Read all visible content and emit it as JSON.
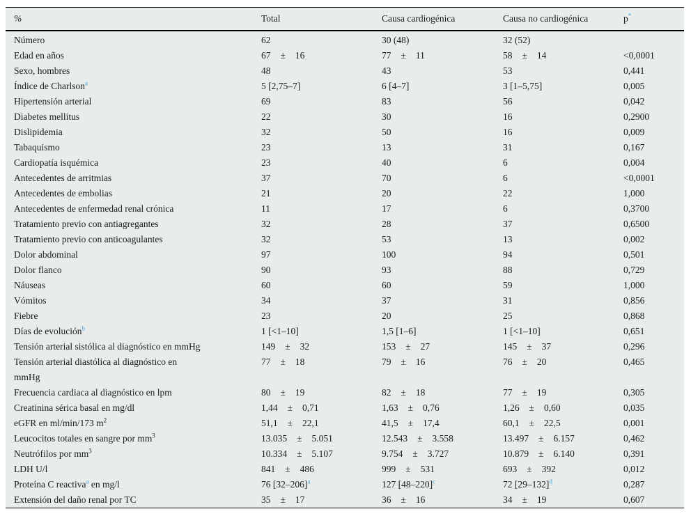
{
  "colors": {
    "accent_blue": "#4BA2D8",
    "table_background": "#E8ECEB",
    "rule_color": "#000000",
    "text_color": "#1B1B1B"
  },
  "table": {
    "headers": [
      "%",
      "Total",
      "Causa cardiogénica",
      "Causa no cardiogénica"
    ],
    "p_label": "p",
    "p_sup": "*",
    "rows": [
      {
        "label": [
          {
            "t": "Número"
          }
        ],
        "cells": [
          "62",
          "30 (48)",
          "32 (52)",
          ""
        ]
      },
      {
        "label": [
          {
            "t": "Edad en años"
          }
        ],
        "cells": [
          "67 ± 16",
          "77 ± 11",
          "58 ± 14",
          "<0,0001"
        ]
      },
      {
        "label": [
          {
            "t": "Sexo, hombres"
          }
        ],
        "cells": [
          "48",
          "43",
          "53",
          "0,441"
        ]
      },
      {
        "label": [
          {
            "t": "Índice de Charlson"
          },
          {
            "sup": "a",
            "blue": true
          }
        ],
        "cells": [
          "5 [2,75–7]",
          "6 [4–7]",
          "3 [1–5,75]",
          "0,005"
        ]
      },
      {
        "label": [
          {
            "t": "Hipertensión arterial"
          }
        ],
        "cells": [
          "69",
          "83",
          "56",
          "0,042"
        ]
      },
      {
        "label": [
          {
            "t": "Diabetes mellitus"
          }
        ],
        "cells": [
          "22",
          "30",
          "16",
          "0,2900"
        ]
      },
      {
        "label": [
          {
            "t": "Dislipidemia"
          }
        ],
        "cells": [
          "32",
          "50",
          "16",
          "0,009"
        ]
      },
      {
        "label": [
          {
            "t": "Tabaquismo"
          }
        ],
        "cells": [
          "23",
          "13",
          "31",
          "0,167"
        ]
      },
      {
        "label": [
          {
            "t": "Cardiopatía isquémica"
          }
        ],
        "cells": [
          "23",
          "40",
          "6",
          "0,004"
        ]
      },
      {
        "label": [
          {
            "t": "Antecedentes de arritmias"
          }
        ],
        "cells": [
          "37",
          "70",
          "6",
          "<0,0001"
        ]
      },
      {
        "label": [
          {
            "t": "Antecedentes de embolias"
          }
        ],
        "cells": [
          "21",
          "20",
          "22",
          "1,000"
        ]
      },
      {
        "label": [
          {
            "t": "Antecedentes de enfermedad renal crónica"
          }
        ],
        "cells": [
          "11",
          "17",
          "6",
          "0,3700"
        ]
      },
      {
        "label": [
          {
            "t": "Tratamiento previo con antiagregantes"
          }
        ],
        "cells": [
          "32",
          "28",
          "37",
          "0,6500"
        ]
      },
      {
        "label": [
          {
            "t": "Tratamiento previo con anticoagulantes"
          }
        ],
        "cells": [
          "32",
          "53",
          "13",
          "0,002"
        ]
      },
      {
        "label": [
          {
            "t": "Dolor abdominal"
          }
        ],
        "cells": [
          "97",
          "100",
          "94",
          "0,501"
        ]
      },
      {
        "label": [
          {
            "t": "Dolor flanco"
          }
        ],
        "cells": [
          "90",
          "93",
          "88",
          "0,729"
        ]
      },
      {
        "label": [
          {
            "t": "Náuseas"
          }
        ],
        "cells": [
          "60",
          "60",
          "59",
          "1,000"
        ]
      },
      {
        "label": [
          {
            "t": "Vómitos"
          }
        ],
        "cells": [
          "34",
          "37",
          "31",
          "0,856"
        ]
      },
      {
        "label": [
          {
            "t": "Fiebre"
          }
        ],
        "cells": [
          "23",
          "20",
          "25",
          "0,868"
        ]
      },
      {
        "label": [
          {
            "t": "Días de evolución"
          },
          {
            "sup": "b",
            "blue": true
          }
        ],
        "cells": [
          "1 [<1–10]",
          "1,5 [1–6]",
          "1 [<1–10]",
          "0,651"
        ]
      },
      {
        "label": [
          {
            "t": "Tensión arterial sistólica al diagnóstico en mmHg"
          }
        ],
        "cells": [
          "149 ± 32",
          "153 ± 27",
          "145 ± 37",
          "0,296"
        ]
      },
      {
        "label": [
          {
            "t": "Tensión arterial diastólica al diagnóstico en"
          },
          {
            "br": true
          },
          {
            "t": "mmHg"
          }
        ],
        "cells": [
          "77 ± 18",
          "79 ± 16",
          "76 ± 20",
          "0,465"
        ]
      },
      {
        "label": [
          {
            "t": "Frecuencia cardiaca al diagnóstico en lpm"
          }
        ],
        "cells": [
          "80 ± 19",
          "82 ± 18",
          "77 ± 19",
          "0,305"
        ]
      },
      {
        "label": [
          {
            "t": "Creatinina sérica basal en mg/dl"
          }
        ],
        "cells": [
          "1,44 ± 0,71",
          "1,63 ± 0,76",
          "1,26 ± 0,60",
          "0,035"
        ]
      },
      {
        "label": [
          {
            "t": "eGFR en ml/min/173 m"
          },
          {
            "sup": "2"
          }
        ],
        "cells": [
          "51,1 ± 22,1",
          "41,5 ± 17,4",
          "60,1 ± 22,5",
          "0,001"
        ]
      },
      {
        "label": [
          {
            "t": "Leucocitos totales en sangre por mm"
          },
          {
            "sup": "3"
          }
        ],
        "cells": [
          "13.035 ± 5.051",
          "12.543 ± 3.558",
          "13.497 ± 6.157",
          "0,462"
        ]
      },
      {
        "label": [
          {
            "t": "Neutrófilos por mm"
          },
          {
            "sup": "3"
          }
        ],
        "cells": [
          "10.334 ± 5.107",
          "9.754 ± 3.727",
          "10.879 ± 6.140",
          "0,391"
        ]
      },
      {
        "label": [
          {
            "t": "LDH U/l"
          }
        ],
        "cells": [
          "841 ± 486",
          "999 ± 531",
          "693 ± 392",
          "0,012"
        ]
      },
      {
        "label": [
          {
            "t": "Proteína C reactiva"
          },
          {
            "sup": "a",
            "blue": true
          },
          {
            "t": " en mg/l"
          }
        ],
        "cells": [
          [
            {
              "t": "76 [32–206]"
            },
            {
              "sup": "a",
              "blue": true
            }
          ],
          [
            {
              "t": "127 [48–220]"
            },
            {
              "sup": "c",
              "blue": true
            }
          ],
          [
            {
              "t": "72 [29–132]"
            },
            {
              "sup": "d",
              "blue": true
            }
          ],
          "0,287"
        ]
      },
      {
        "label": [
          {
            "t": "Extensión del daño renal por TC"
          }
        ],
        "cells": [
          "35 ± 17",
          "36 ± 16",
          "34 ± 19",
          "0,607"
        ]
      }
    ]
  }
}
